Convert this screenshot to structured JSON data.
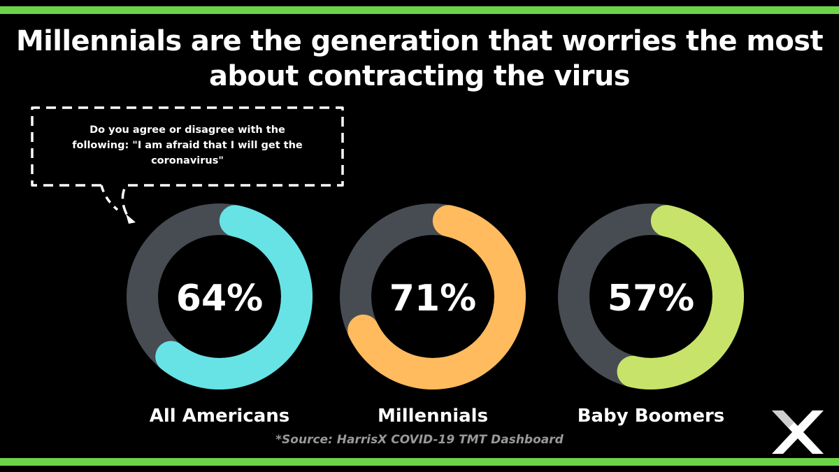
{
  "title": "Millennials are the generation that worries the most about contracting the virus",
  "question": "Do you agree or disagree with the following: \"I am afraid that I will get the coronavirus\"",
  "source": "*Source: HarrisX COVID-19 TMT Dashboard",
  "colors": {
    "background": "#000000",
    "accent_stripe": "#6cd447",
    "track": "#474c53",
    "all_americans": "#67e3e6",
    "millennials": "#ffbb5e",
    "baby_boomers": "#c8e36a",
    "source_text": "#999999"
  },
  "chart_data": {
    "type": "donut",
    "title": "Millennials are the generation that worries the most about contracting the virus",
    "categories": [
      "All Americans",
      "Millennials",
      "Baby Boomers"
    ],
    "values": [
      64,
      71,
      57
    ],
    "value_labels": [
      "64%",
      "71%",
      "57%"
    ],
    "unit": "%",
    "max": 100
  },
  "logo": {
    "icon": "harrisx-x-logo-icon"
  }
}
